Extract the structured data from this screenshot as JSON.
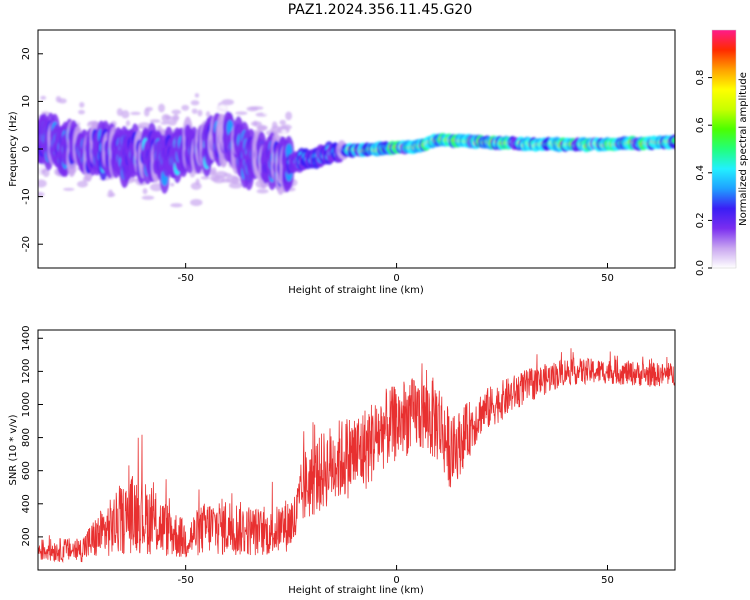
{
  "figure": {
    "title": "PAZ1.2024.356.11.45.G20"
  },
  "chart_data": [
    {
      "type": "heatmap",
      "xlabel": "Height of straight line (km)",
      "ylabel": "Frequency (Hz)",
      "xlim": [
        -85,
        66
      ],
      "ylim": [
        -25,
        25
      ],
      "xticks": [
        -50,
        0,
        50
      ],
      "yticks": [
        -20,
        -10,
        0,
        10,
        20
      ],
      "grid": false,
      "colorbar": {
        "label": "Normalized spectral amplitude",
        "range": [
          0,
          1
        ],
        "ticks": [
          0.0,
          0.2,
          0.4,
          0.6,
          0.8
        ],
        "colors": [
          "#ffffff",
          "#c9a6f0",
          "#7a2ef0",
          "#3a1ef5",
          "#1fa0ff",
          "#22f0ff",
          "#22ff7a",
          "#4cff00",
          "#c8ff00",
          "#ffff00",
          "#ffa000",
          "#ff2a00",
          "#ff1a8a"
        ]
      },
      "ridge": [
        {
          "x": -85,
          "f": 2
        },
        {
          "x": -75,
          "f": 0
        },
        {
          "x": -65,
          "f": -1
        },
        {
          "x": -55,
          "f": -2
        },
        {
          "x": -45,
          "f": 1
        },
        {
          "x": -40,
          "f": 3
        },
        {
          "x": -35,
          "f": -2
        },
        {
          "x": -25,
          "f": -3
        },
        {
          "x": -20,
          "f": -2
        },
        {
          "x": -15,
          "f": -0.5
        },
        {
          "x": -5,
          "f": 0
        },
        {
          "x": 5,
          "f": 0.5
        },
        {
          "x": 10,
          "f": 2
        },
        {
          "x": 20,
          "f": 1.5
        },
        {
          "x": 30,
          "f": 1
        },
        {
          "x": 40,
          "f": 1
        },
        {
          "x": 50,
          "f": 1
        },
        {
          "x": 66,
          "f": 1.5
        }
      ]
    },
    {
      "type": "line",
      "xlabel": "Height of straight line (km)",
      "ylabel": "SNR (10 * v/v)",
      "xlim": [
        -85,
        66
      ],
      "ylim": [
        0,
        1450
      ],
      "xticks": [
        -50,
        0,
        50
      ],
      "yticks": [
        200,
        400,
        600,
        800,
        1000,
        1200,
        1400
      ],
      "grid": false,
      "series": [
        {
          "color": "#e83030",
          "envelope": [
            {
              "x": -85,
              "mean": 120,
              "spread": 90
            },
            {
              "x": -75,
              "mean": 120,
              "spread": 100
            },
            {
              "x": -70,
              "mean": 220,
              "spread": 200
            },
            {
              "x": -62,
              "mean": 350,
              "spread": 330
            },
            {
              "x": -57,
              "mean": 280,
              "spread": 260
            },
            {
              "x": -50,
              "mean": 180,
              "spread": 160
            },
            {
              "x": -45,
              "mean": 260,
              "spread": 220
            },
            {
              "x": -40,
              "mean": 260,
              "spread": 240
            },
            {
              "x": -30,
              "mean": 220,
              "spread": 180
            },
            {
              "x": -24,
              "mean": 300,
              "spread": 240
            },
            {
              "x": -22,
              "mean": 500,
              "spread": 300
            },
            {
              "x": -15,
              "mean": 650,
              "spread": 330
            },
            {
              "x": -8,
              "mean": 720,
              "spread": 350
            },
            {
              "x": -3,
              "mean": 850,
              "spread": 320
            },
            {
              "x": 5,
              "mean": 950,
              "spread": 300
            },
            {
              "x": 10,
              "mean": 900,
              "spread": 350
            },
            {
              "x": 13,
              "mean": 700,
              "spread": 300
            },
            {
              "x": 20,
              "mean": 950,
              "spread": 180
            },
            {
              "x": 30,
              "mean": 1100,
              "spread": 140
            },
            {
              "x": 40,
              "mean": 1200,
              "spread": 110
            },
            {
              "x": 50,
              "mean": 1200,
              "spread": 100
            },
            {
              "x": 60,
              "mean": 1180,
              "spread": 100
            },
            {
              "x": 66,
              "mean": 1180,
              "spread": 90
            }
          ]
        }
      ]
    }
  ]
}
